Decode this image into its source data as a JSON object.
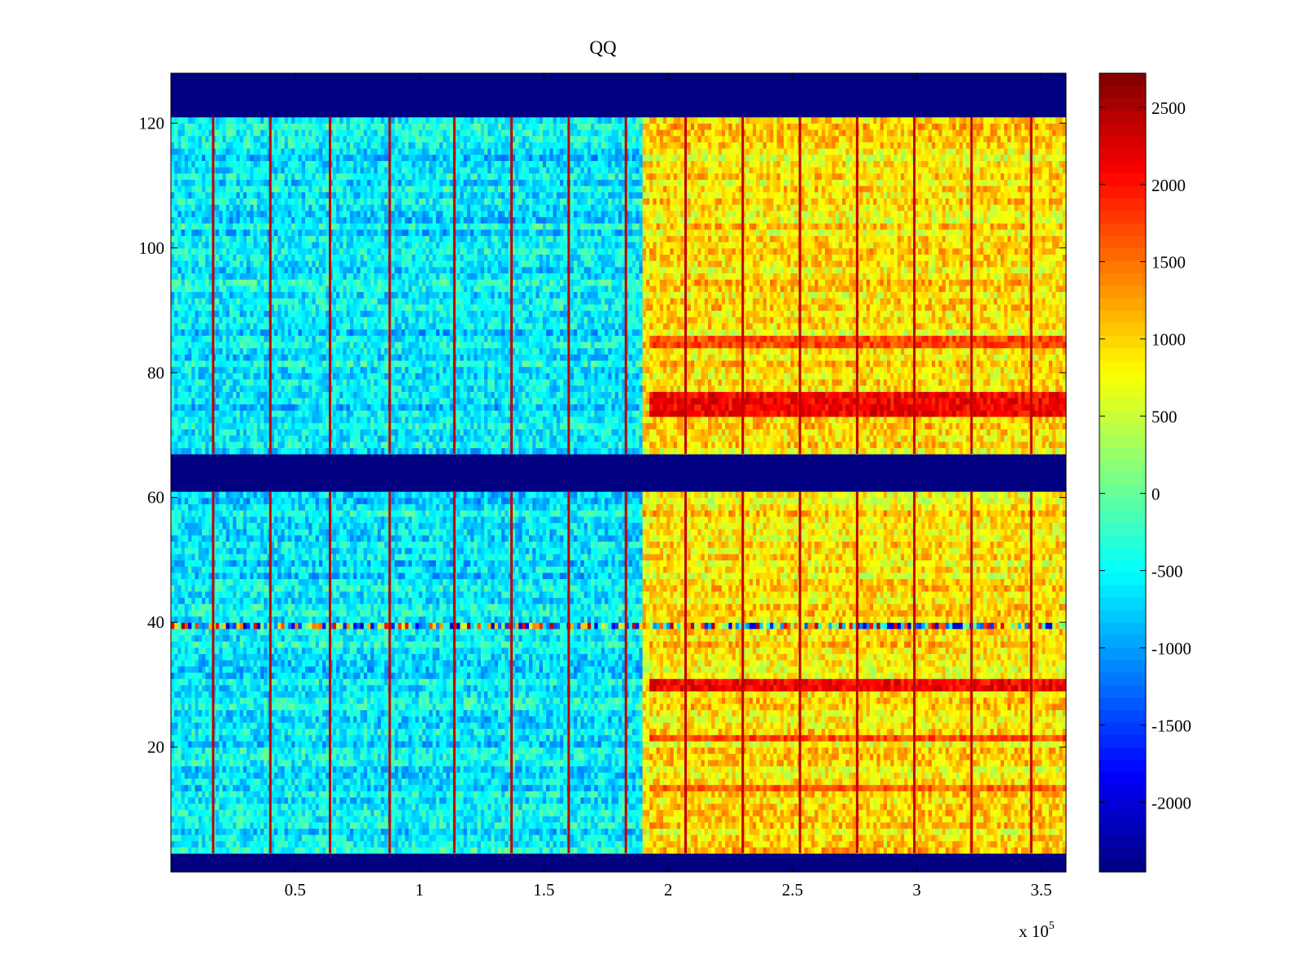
{
  "chart_data": {
    "type": "heatmap",
    "title": "QQ",
    "xlabel": "",
    "ylabel": "",
    "x_exponent_label": "x 10",
    "x_exponent_power": "5",
    "xlim": [
      0,
      3.6
    ],
    "ylim": [
      0,
      128
    ],
    "x_ticks": [
      0.5,
      1,
      1.5,
      2,
      2.5,
      3,
      3.5
    ],
    "x_tick_labels": [
      "0.5",
      "1",
      "1.5",
      "2",
      "2.5",
      "3",
      "3.5"
    ],
    "y_ticks": [
      20,
      40,
      60,
      80,
      100,
      120
    ],
    "y_tick_labels": [
      "20",
      "40",
      "60",
      "80",
      "100",
      "120"
    ],
    "colormap": "jet",
    "clim": [
      -2450,
      2720
    ],
    "colorbar_ticks": [
      2500,
      2000,
      1500,
      1000,
      500,
      0,
      -500,
      -1000,
      -1500,
      -2000
    ],
    "colorbar_tick_labels": [
      "2500",
      "2000",
      "1500",
      "1000",
      "500",
      "0",
      "-500",
      "-1000",
      "-1500",
      "-2000"
    ],
    "empty_row_bands": [
      {
        "rows": [
          0,
          3
        ],
        "value": -2450
      },
      {
        "rows": [
          61,
          67
        ],
        "value": -2450
      },
      {
        "rows": [
          121,
          128
        ],
        "value": -2450
      }
    ],
    "regions": [
      {
        "x_range": [
          0,
          1.9
        ],
        "mean_value": -600,
        "description_value_level": "low"
      },
      {
        "x_range": [
          1.9,
          3.6
        ],
        "mean_value": 900,
        "description_value_level": "high"
      }
    ],
    "vertical_spike_lines_x": [
      0.17,
      0.4,
      0.64,
      0.88,
      1.14,
      1.37,
      1.6,
      1.83,
      2.07,
      2.3,
      2.53,
      2.76,
      2.99,
      3.22,
      3.46
    ],
    "hot_rows": [
      {
        "rows": [
          73,
          77
        ],
        "x_start": 1.93,
        "value": 2100
      },
      {
        "rows": [
          84,
          86
        ],
        "x_start": 1.93,
        "value": 1700
      },
      {
        "rows": [
          29,
          31
        ],
        "x_start": 1.93,
        "value": 2100
      },
      {
        "rows": [
          21,
          22
        ],
        "x_start": 1.93,
        "value": 1700
      },
      {
        "rows": [
          13,
          14
        ],
        "x_start": 1.93,
        "value": 1600
      }
    ],
    "noisy_row": {
      "row": 39,
      "values_range": [
        -2200,
        2600
      ]
    }
  }
}
